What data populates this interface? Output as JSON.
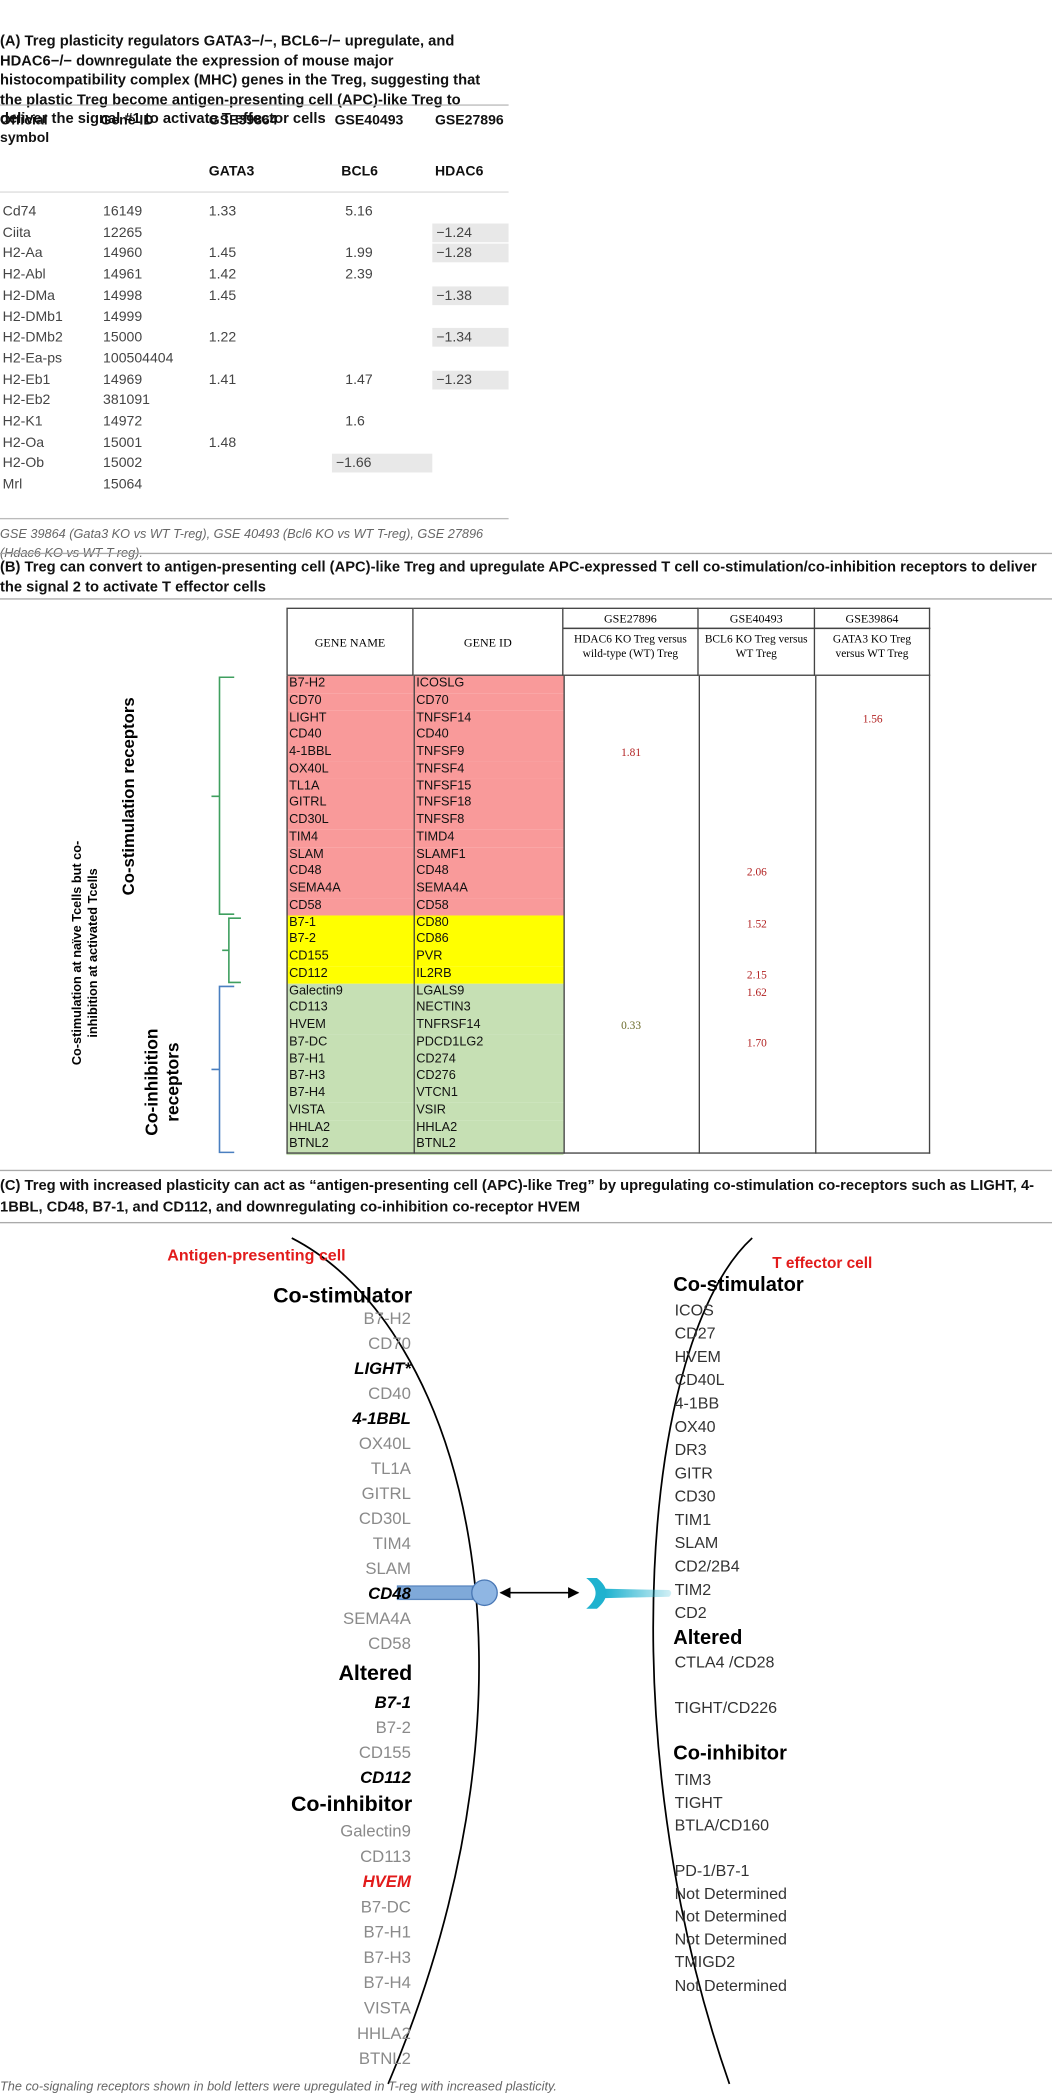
{
  "section_a": {
    "title": "(A) Treg plasticity regulators GATA3−/−, BCL6−/− upregulate, and HDAC6−/− downregulate the expression of mouse major histocompatibility complex (MHC) genes in the Treg, suggesting that the plastic Treg become antigen-presenting cell (APC)-like Treg to deliver the signal #1 to activate T effector cells",
    "headers": {
      "symbol": "Official symbol",
      "gene_id": "Gene ID",
      "gse": [
        "GSE39864",
        "GSE40493",
        "GSE27896"
      ],
      "genes": [
        "GATA3",
        "BCL6",
        "HDAC6"
      ]
    },
    "rows": [
      [
        "Cd74",
        "16149",
        "1.33",
        "5.16",
        null
      ],
      [
        "Ciita",
        "12265",
        null,
        null,
        "−1.24"
      ],
      [
        "H2-Aa",
        "14960",
        "1.45",
        "1.99",
        "−1.28"
      ],
      [
        "H2-Abl",
        "14961",
        "1.42",
        "2.39",
        null
      ],
      [
        "H2-DMa",
        "14998",
        "1.45",
        null,
        "−1.38"
      ],
      [
        "H2-DMb1",
        "14999",
        null,
        null,
        null
      ],
      [
        "H2-DMb2",
        "15000",
        "1.22",
        null,
        "−1.34"
      ],
      [
        "H2-Ea-ps",
        "100504404",
        null,
        null,
        null
      ],
      [
        "H2-Eb1",
        "14969",
        "1.41",
        "1.47",
        "−1.23"
      ],
      [
        "H2-Eb2",
        "381091",
        null,
        null,
        null
      ],
      [
        "H2-K1",
        "14972",
        null,
        "1.6",
        null
      ],
      [
        "H2-Oa",
        "15001",
        "1.48",
        null,
        null
      ],
      [
        "H2-Ob",
        "15002",
        null,
        "−1.66",
        null
      ],
      [
        "Mrl",
        "15064",
        null,
        null,
        null
      ]
    ],
    "footnote": "GSE 39864 (Gata3 KO vs WT T-reg), GSE 40493 (Bcl6 KO vs WT T-reg), GSE 27896 (Hdac6 KO vs WT T-reg)."
  },
  "section_b": {
    "title": "(B) Treg can convert to antigen-presenting cell (APC)-like Treg and upregulate APC-expressed T cell co-stimulation/co-inhibition receptors to deliver the signal 2 to activate T effector cells",
    "headers": {
      "gene_name": "GENE NAME",
      "gene_id": "GENE ID",
      "gse": [
        "GSE27896",
        "GSE40493",
        "GSE39864"
      ],
      "comparisons": [
        "HDAC6 KO Treg versus wild-type (WT) Treg",
        "BCL6 KO Treg versus WT Treg",
        "GATA3 KO Treg versus WT Treg"
      ]
    },
    "groups": [
      {
        "label": "Co-stimulation receptors",
        "rows": [
          [
            "B7-H2",
            "ICOSLG",
            null,
            null,
            null
          ],
          [
            "CD70",
            "CD70",
            null,
            null,
            null
          ],
          [
            "LIGHT",
            "TNFSF14",
            null,
            null,
            "1.56"
          ],
          [
            "CD40",
            "CD40",
            null,
            null,
            null
          ],
          [
            "4-1BBL",
            "TNFSF9",
            "1.81",
            null,
            null
          ],
          [
            "OX40L",
            "TNFSF4",
            null,
            null,
            null
          ],
          [
            "TL1A",
            "TNFSF15",
            null,
            null,
            null
          ],
          [
            "GITRL",
            "TNFSF18",
            null,
            null,
            null
          ],
          [
            "CD30L",
            "TNFSF8",
            null,
            null,
            null
          ],
          [
            "TIM4",
            "TIMD4",
            null,
            null,
            null
          ],
          [
            "SLAM",
            "SLAMF1",
            null,
            null,
            null
          ],
          [
            "CD48",
            "CD48",
            null,
            "2.06",
            null
          ],
          [
            "SEMA4A",
            "SEMA4A",
            null,
            null,
            null
          ],
          [
            "CD58",
            "CD58",
            null,
            null,
            null
          ]
        ]
      },
      {
        "label": "Co-stimulation at naïve Tcells but co-inhibition at activated Tcells",
        "rows": [
          [
            "B7-1",
            "CD80",
            null,
            "1.52",
            null
          ],
          [
            "B7-2",
            "CD86",
            null,
            null,
            null
          ],
          [
            "CD155",
            "PVR",
            null,
            null,
            null
          ],
          [
            "CD112",
            "IL2RB",
            null,
            "2.15",
            null
          ]
        ]
      },
      {
        "label": "Co-inhibition receptors",
        "rows": [
          [
            "Galectin9",
            "LGALS9",
            null,
            "1.62",
            null
          ],
          [
            "CD113",
            "NECTIN3",
            null,
            null,
            null
          ],
          [
            "HVEM",
            "TNFRSF14",
            "0.33",
            null,
            null
          ],
          [
            "B7-DC",
            "PDCD1LG2",
            null,
            "1.70",
            null
          ],
          [
            "B7-H1",
            "CD274",
            null,
            null,
            null
          ],
          [
            "B7-H3",
            "CD276",
            null,
            null,
            null
          ],
          [
            "B7-H4",
            "VTCN1",
            null,
            null,
            null
          ],
          [
            "VISTA",
            "VSIR",
            null,
            null,
            null
          ],
          [
            "HHLA2",
            "HHLA2",
            null,
            null,
            null
          ],
          [
            "BTNL2",
            "BTNL2",
            null,
            null,
            null
          ]
        ]
      }
    ]
  },
  "section_c": {
    "title": "(C) Treg with increased plasticity can act as “antigen-presenting cell (APC)-like Treg” by upregulating co-stimulation co-receptors such as LIGHT, 4-1BBL, CD48, B7-1, and CD112, and downregulating co-inhibition co-receptor HVEM",
    "left": {
      "title": "Antigen-presenting cell",
      "groups": [
        {
          "heading": "Co-stimulator",
          "items": [
            "B7-H2",
            "CD70",
            "LIGHT*",
            "CD40",
            "4-1BBL",
            "OX40L",
            "TL1A",
            "GITRL",
            "CD30L",
            "TIM4",
            "SLAM",
            "CD48",
            "SEMA4A",
            "CD58"
          ]
        },
        {
          "heading": "Altered",
          "items": [
            "B7-1",
            "B7-2",
            "CD155",
            "CD112"
          ]
        },
        {
          "heading": "Co-inhibitor",
          "items": [
            "Galectin9",
            "CD113",
            "HVEM",
            "B7-DC",
            "B7-H1",
            "B7-H3",
            "B7-H4",
            "VISTA",
            "HHLA2",
            "BTNL2"
          ]
        }
      ]
    },
    "right": {
      "title": "T effector cell",
      "groups": [
        {
          "heading": "Co-stimulator",
          "items": [
            "ICOS",
            "CD27",
            "HVEM",
            "CD40L",
            "4-1BB",
            "OX40",
            "DR3",
            "GITR",
            "CD30",
            "TIM1",
            "SLAM",
            "CD2/2B4",
            "TIM2",
            "CD2"
          ]
        },
        {
          "heading": "Altered",
          "items": [
            "CTLA4 /CD28",
            "TIGHT/CD226"
          ]
        },
        {
          "heading": "Co-inhibitor",
          "items": [
            "TIM3",
            "TIGHT",
            "BTLA/CD160",
            "PD-1/B7-1",
            "Not Determined",
            "Not Determined",
            "Not Determined",
            "TMIGD2",
            "Not Determined"
          ]
        }
      ]
    },
    "footnote": "The co-signaling receptors shown in bold letters were upregulated in T-reg with increased plasticity."
  }
}
